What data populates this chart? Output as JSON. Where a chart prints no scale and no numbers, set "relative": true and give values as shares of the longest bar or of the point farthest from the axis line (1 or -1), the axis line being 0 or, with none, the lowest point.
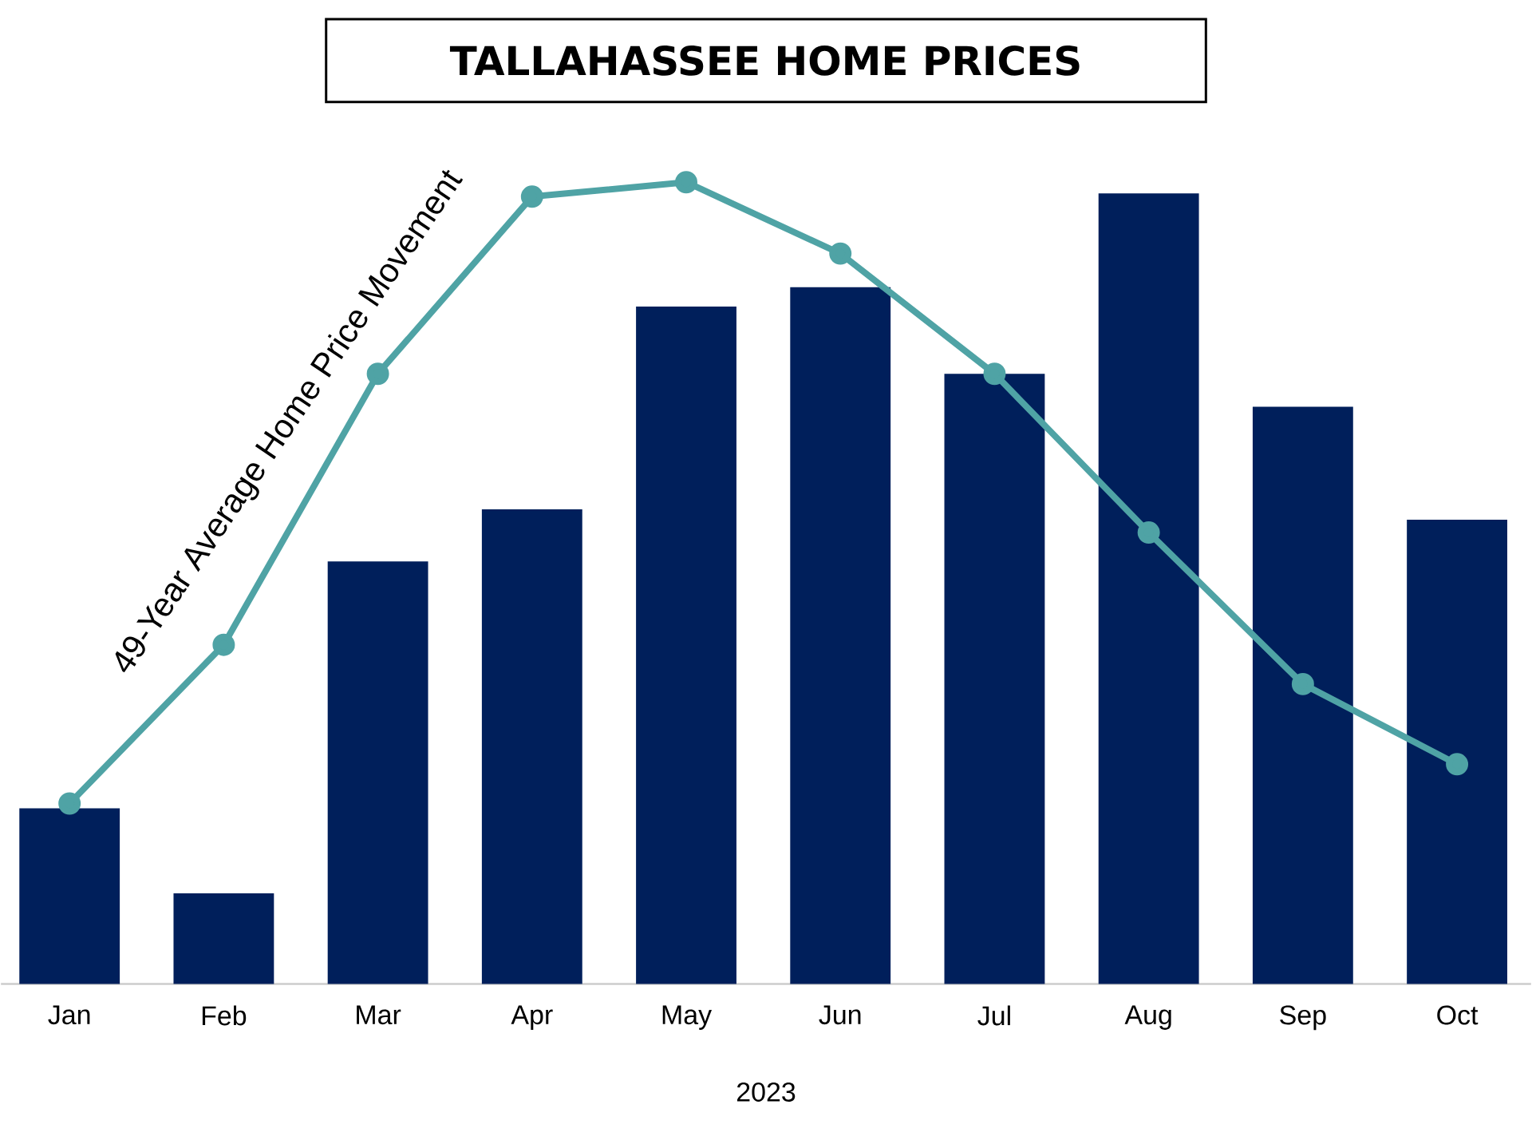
{
  "chart_data": {
    "type": "bar",
    "title": "TALLAHASSEE HOME PRICES",
    "xlabel": "2023",
    "relative": true,
    "categories": [
      "Jan",
      "Feb",
      "Mar",
      "Apr",
      "May",
      "Jun",
      "Jul",
      "Aug",
      "Sep",
      "Oct"
    ],
    "series": [
      {
        "color": "#001f5b",
        "values": [
          0.219,
          0.113,
          0.527,
          0.592,
          0.845,
          0.869,
          0.761,
          0.986,
          0.72,
          0.579
        ]
      },
      {
        "type": "line",
        "name": "49-Year Average Home Price Movement",
        "color": "#4fa3a5",
        "marker": "circle",
        "values": [
          0.225,
          0.423,
          0.761,
          0.982,
          1,
          0.911,
          0.761,
          0.563,
          0.374,
          0.274
        ]
      }
    ]
  }
}
